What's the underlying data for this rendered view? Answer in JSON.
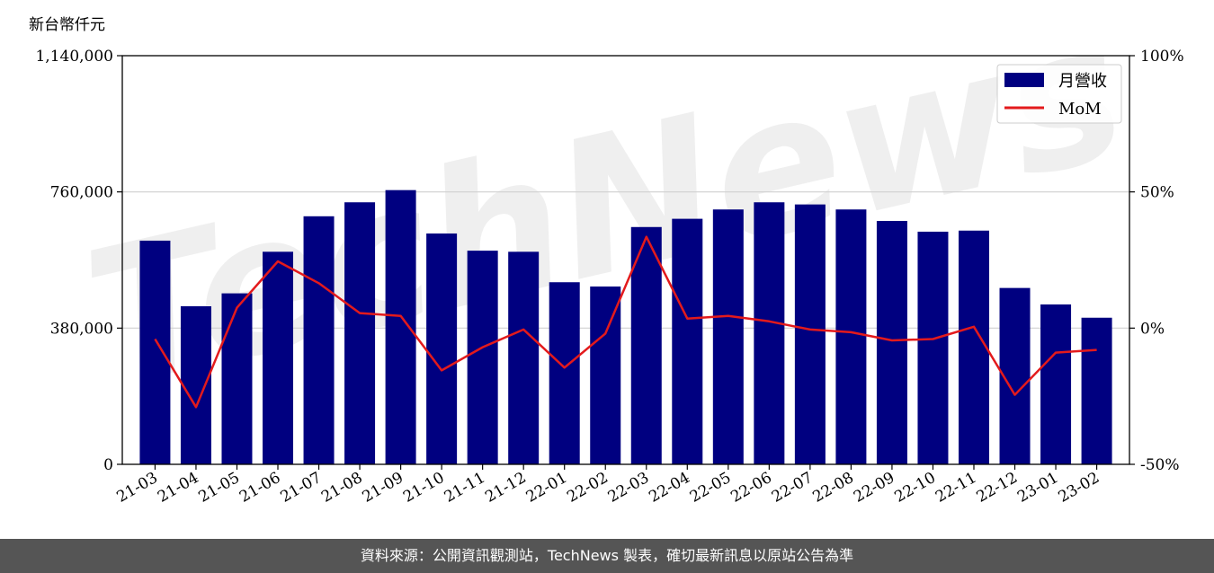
{
  "chart_data": {
    "type": "bar",
    "unit_label": "新台幣仟元",
    "categories": [
      "21-03",
      "21-04",
      "21-05",
      "21-06",
      "21-07",
      "21-08",
      "21-09",
      "21-10",
      "21-11",
      "21-12",
      "22-01",
      "22-02",
      "22-03",
      "22-04",
      "22-05",
      "22-06",
      "22-07",
      "22-08",
      "22-09",
      "22-10",
      "22-11",
      "22-12",
      "23-01",
      "23-02"
    ],
    "series": [
      {
        "name": "月營收",
        "type": "bar",
        "axis": "left",
        "color": "#000080",
        "values": [
          624000,
          441000,
          477000,
          593000,
          692000,
          731000,
          765000,
          644000,
          596000,
          593000,
          508000,
          496000,
          662000,
          685000,
          711000,
          731000,
          725000,
          711000,
          679000,
          649000,
          652000,
          492000,
          446000,
          409000
        ]
      },
      {
        "name": "MoM",
        "type": "line",
        "axis": "right",
        "color": "#e31a1c",
        "values": [
          -4,
          -29,
          7.5,
          24.5,
          16.5,
          5.5,
          4.5,
          -15.5,
          -7,
          -0.5,
          -14.5,
          -2,
          33.5,
          3.5,
          4.5,
          2.5,
          -0.5,
          -1.5,
          -4.5,
          -4,
          0.5,
          -24.5,
          -9,
          -8
        ]
      }
    ],
    "y_left": {
      "ticks": [
        0,
        380000,
        760000,
        1140000
      ],
      "tick_labels": [
        "0",
        "380,000",
        "760,000",
        "1,140,000"
      ],
      "ylim": [
        0,
        1140000
      ]
    },
    "y_right": {
      "ticks": [
        -50,
        0,
        50,
        100
      ],
      "tick_labels": [
        "-50%",
        "0%",
        "50%",
        "100%"
      ],
      "ylim": [
        -50,
        100
      ]
    },
    "grid": true,
    "legend_position": "top-right",
    "watermark": "TechNews"
  },
  "footer": {
    "text": "資料來源：公開資訊觀測站，TechNews 製表，確切最新訊息以原站公告為準"
  }
}
